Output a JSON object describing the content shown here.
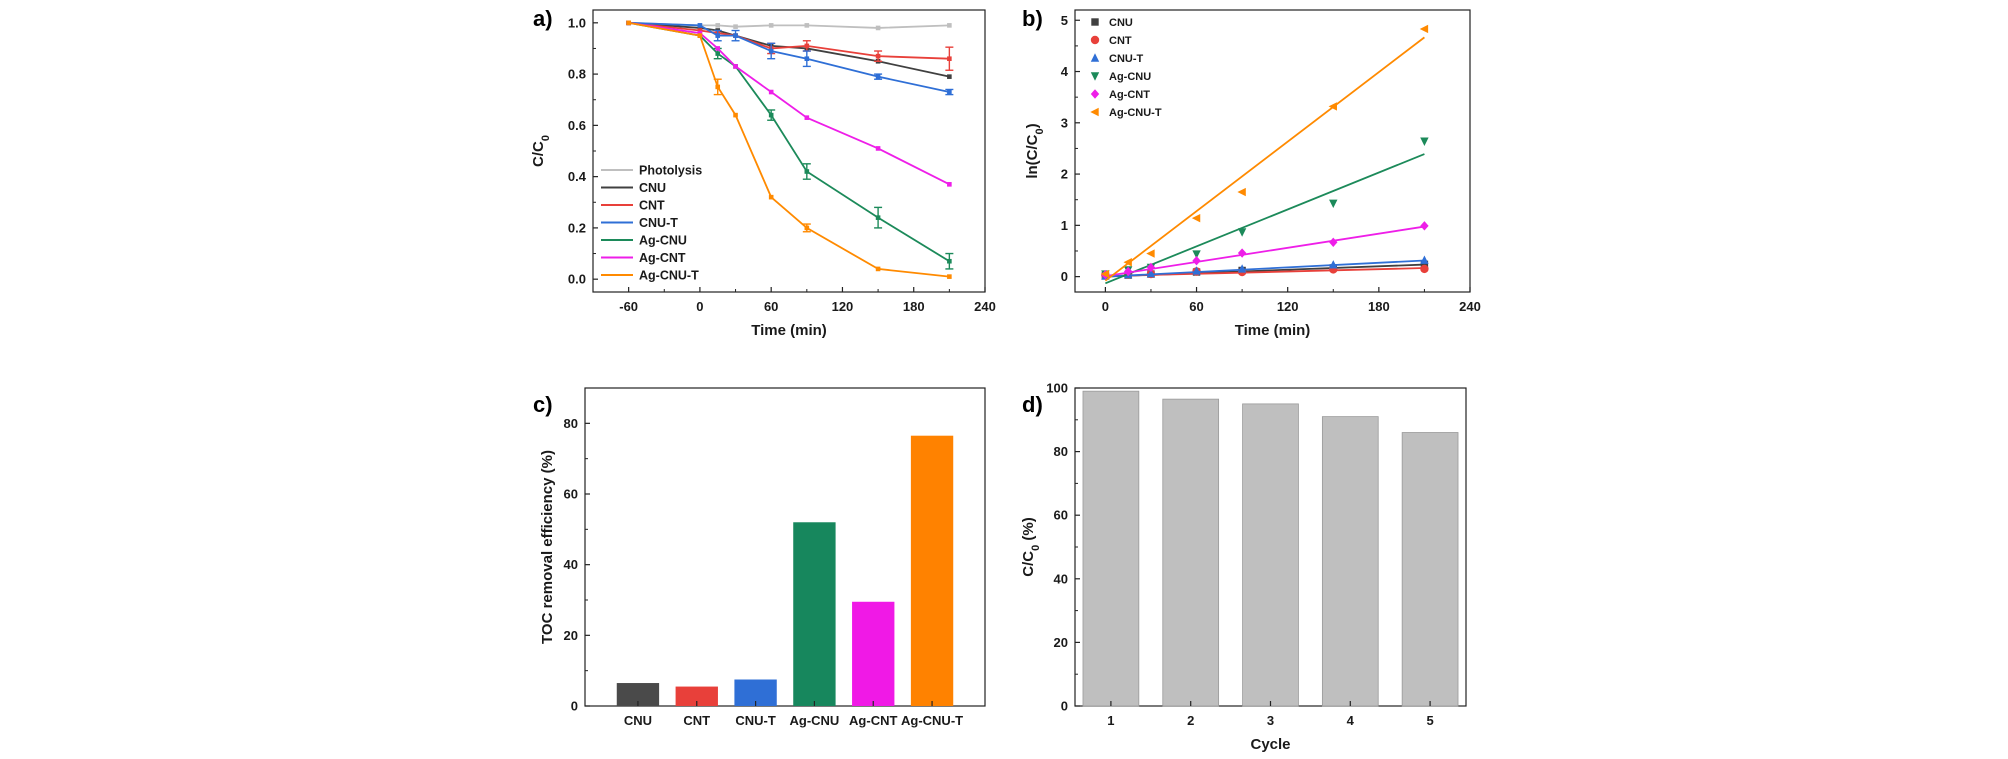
{
  "chart_data": [
    {
      "id": "a",
      "panel_label": "a)",
      "type": "line",
      "xlabel": "Time (min)",
      "ylabel": "C/C",
      "ylabel_sub": "0",
      "xlim": [
        -90,
        240
      ],
      "ylim": [
        -0.05,
        1.05
      ],
      "xticks": [
        -60,
        0,
        60,
        120,
        180,
        240
      ],
      "yticks": [
        0.0,
        0.2,
        0.4,
        0.6,
        0.8,
        1.0
      ],
      "ytick_labels": [
        "0.0",
        "0.2",
        "0.4",
        "0.6",
        "0.8",
        "1.0"
      ],
      "x": [
        -60,
        0,
        15,
        30,
        60,
        90,
        150,
        210
      ],
      "legend": "lower-left",
      "series": [
        {
          "name": "Photolysis",
          "color": "#bfbfbf",
          "values": [
            1.0,
            0.99,
            0.99,
            0.985,
            0.99,
            0.99,
            0.98,
            0.99
          ]
        },
        {
          "name": "CNU",
          "color": "#404040",
          "values": [
            1.0,
            0.98,
            0.97,
            0.95,
            0.91,
            0.9,
            0.85,
            0.79
          ]
        },
        {
          "name": "CNT",
          "color": "#e8403a",
          "values": [
            1.0,
            0.97,
            0.96,
            0.95,
            0.9,
            0.91,
            0.87,
            0.86
          ],
          "err": [
            0,
            0,
            0,
            0,
            0.02,
            0.02,
            0.02,
            0.045
          ]
        },
        {
          "name": "CNU-T",
          "color": "#2f6fd6",
          "values": [
            1.0,
            0.99,
            0.95,
            0.95,
            0.89,
            0.86,
            0.79,
            0.73
          ],
          "err": [
            0,
            0,
            0.02,
            0.02,
            0.03,
            0.03,
            0.01,
            0.01
          ]
        },
        {
          "name": "Ag-CNU",
          "color": "#1c8a5a",
          "values": [
            1.0,
            0.95,
            0.88,
            0.83,
            0.64,
            0.42,
            0.24,
            0.07
          ],
          "err": [
            0,
            0,
            0.02,
            0,
            0.02,
            0.03,
            0.04,
            0.03
          ]
        },
        {
          "name": "Ag-CNT",
          "color": "#ee1ee8",
          "values": [
            1.0,
            0.96,
            0.9,
            0.83,
            0.73,
            0.63,
            0.51,
            0.37
          ]
        },
        {
          "name": "Ag-CNU-T",
          "color": "#ff8a00",
          "values": [
            1.0,
            0.95,
            0.75,
            0.64,
            0.32,
            0.2,
            0.04,
            0.01
          ],
          "err": [
            0,
            0,
            0.03,
            0,
            0,
            0.015,
            0,
            0
          ]
        }
      ]
    },
    {
      "id": "b",
      "panel_label": "b)",
      "type": "scatter",
      "xlabel": "Time (min)",
      "ylabel": "ln(C/C",
      "ylabel_sub": "0",
      "ylabel_end": ")",
      "xlim": [
        -20,
        240
      ],
      "ylim": [
        -0.3,
        5.2
      ],
      "xticks": [
        0,
        60,
        120,
        180,
        240
      ],
      "yticks": [
        0,
        1,
        2,
        3,
        4,
        5
      ],
      "ytick_labels": [
        "0",
        "1",
        "2",
        "3",
        "4",
        "5"
      ],
      "x": [
        0,
        15,
        30,
        60,
        90,
        150,
        210
      ],
      "legend": "top-left",
      "series": [
        {
          "name": "CNU",
          "color": "#404040",
          "marker": "square",
          "values": [
            0.02,
            0.03,
            0.05,
            0.09,
            0.12,
            0.17,
            0.24
          ],
          "fit": [
            0.0,
            0.00112
          ]
        },
        {
          "name": "CNT",
          "color": "#e8403a",
          "marker": "circle",
          "values": [
            0.03,
            0.04,
            0.05,
            0.1,
            0.09,
            0.14,
            0.15
          ],
          "fit": [
            0.01,
            0.00075
          ]
        },
        {
          "name": "CNU-T",
          "color": "#2f6fd6",
          "marker": "triangle-up",
          "values": [
            0.01,
            0.04,
            0.06,
            0.11,
            0.15,
            0.23,
            0.32
          ],
          "fit": [
            0.0,
            0.0015
          ]
        },
        {
          "name": "Ag-CNU",
          "color": "#1c8a5a",
          "marker": "triangle-down",
          "values": [
            0.05,
            0.13,
            0.18,
            0.44,
            0.87,
            1.43,
            2.64
          ],
          "fit": [
            -0.13,
            0.012
          ]
        },
        {
          "name": "Ag-CNT",
          "color": "#ee1ee8",
          "marker": "diamond",
          "values": [
            0.04,
            0.1,
            0.18,
            0.31,
            0.46,
            0.67,
            0.99
          ],
          "fit": [
            0.01,
            0.0046
          ]
        },
        {
          "name": "Ag-CNU-T",
          "color": "#ff8a00",
          "marker": "triangle-left",
          "values": [
            0.05,
            0.28,
            0.45,
            1.14,
            1.65,
            3.32,
            4.83
          ],
          "fit": [
            -0.08,
            0.0226
          ]
        }
      ]
    },
    {
      "id": "c",
      "panel_label": "c)",
      "type": "bar",
      "xlabel": "",
      "ylabel": "TOC removal efficiency (%)",
      "ylim": [
        0,
        90
      ],
      "yticks": [
        0,
        20,
        40,
        60,
        80
      ],
      "ytick_labels": [
        "0",
        "20",
        "40",
        "60",
        "80"
      ],
      "categories": [
        "CNU",
        "CNT",
        "CNU-T",
        "Ag-CNU",
        "Ag-CNT",
        "Ag-CNU-T"
      ],
      "values": [
        6.5,
        5.5,
        7.5,
        52,
        29.5,
        76.5
      ],
      "colors": [
        "#4a4a4a",
        "#e8403a",
        "#2f6fd6",
        "#17875d",
        "#f019e6",
        "#ff8200"
      ]
    },
    {
      "id": "d",
      "panel_label": "d)",
      "type": "bar",
      "xlabel": "Cycle",
      "ylabel": "C/C",
      "ylabel_sub": "0",
      "ylabel_end": " (%)",
      "ylim": [
        0,
        100
      ],
      "yticks": [
        0,
        20,
        40,
        60,
        80,
        100
      ],
      "ytick_labels": [
        "0",
        "20",
        "40",
        "60",
        "80",
        "100"
      ],
      "categories": [
        "1",
        "2",
        "3",
        "4",
        "5"
      ],
      "values": [
        99,
        96.5,
        95,
        91,
        86
      ],
      "colors": [
        "#bfbfbf",
        "#bfbfbf",
        "#bfbfbf",
        "#bfbfbf",
        "#bfbfbf"
      ]
    }
  ]
}
